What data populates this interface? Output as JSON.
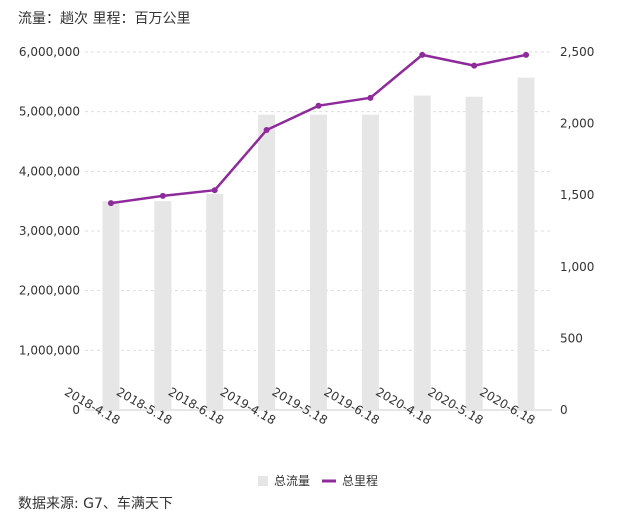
{
  "header": {
    "units": "流量：趟次  里程：百万公里"
  },
  "footer": {
    "source": "数据来源: G7、车满天下"
  },
  "chart_data": {
    "type": "bar+line",
    "categories": [
      "2018-4.18",
      "2018-5.18",
      "2018-6.18",
      "2019-4.18",
      "2019-5.18",
      "2019-6.18",
      "2020-4.18",
      "2020-5.18",
      "2020-6.18"
    ],
    "series": [
      {
        "name": "总流量",
        "type": "bar",
        "axis": "left",
        "color": "#e6e6e6",
        "values": [
          3500000,
          3500000,
          3620000,
          4950000,
          4950000,
          4950000,
          5270000,
          5250000,
          5570000
        ]
      },
      {
        "name": "总里程",
        "type": "line",
        "axis": "right",
        "color": "#8e2a9c",
        "values": [
          1445,
          1495,
          1535,
          1955,
          2125,
          2180,
          2480,
          2405,
          2480
        ]
      }
    ],
    "y_left": {
      "min": 0,
      "max": 6000000,
      "ticks": [
        0,
        1000000,
        2000000,
        3000000,
        4000000,
        5000000,
        6000000
      ],
      "tick_labels": [
        "0",
        "1,000,000",
        "2,000,000",
        "3,000,000",
        "4,000,000",
        "5,000,000",
        "6,000,000"
      ]
    },
    "y_right": {
      "min": 0,
      "max": 2500,
      "ticks": [
        0,
        500,
        1000,
        1500,
        2000,
        2500
      ],
      "tick_labels": [
        "0",
        "500",
        "1,000",
        "1,500",
        "2,000",
        "2,500"
      ]
    },
    "legend": {
      "position": "bottom",
      "items": [
        "总流量",
        "总里程"
      ]
    },
    "grid": true
  }
}
